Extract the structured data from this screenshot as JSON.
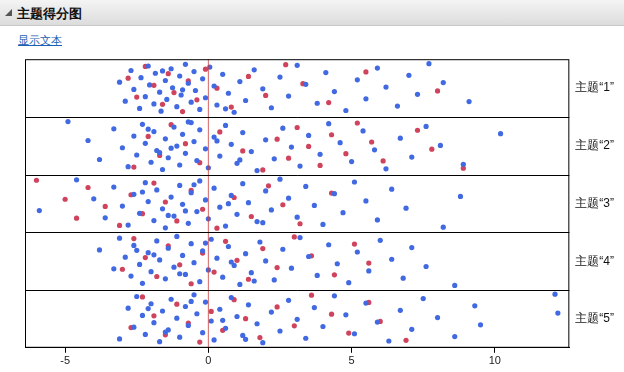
{
  "title": "主题得分图",
  "link_text": "显示文本",
  "chart_data": {
    "type": "scatter",
    "xlim": [
      -6.4,
      12.6
    ],
    "xticks": [
      -5,
      0,
      5,
      10
    ],
    "grid": false,
    "reference_x": 0,
    "panels": [
      {
        "label": "主题“1”",
        "series": [
          {
            "color": "#4169e1",
            "values": [
              -3.1,
              -2.9,
              -2.7,
              -2.6,
              -2.4,
              -2.35,
              -2.2,
              -2.1,
              -2.05,
              -1.9,
              -1.85,
              -1.7,
              -1.65,
              -1.5,
              -1.45,
              -1.3,
              -1.25,
              -1.1,
              -1.0,
              -0.95,
              -0.8,
              -0.7,
              -0.6,
              -0.5,
              -0.45,
              -0.3,
              -0.2,
              -0.1,
              0.05,
              0.2,
              0.3,
              0.5,
              0.7,
              0.9,
              1.1,
              1.3,
              1.6,
              1.9,
              2.2,
              2.5,
              2.8,
              3.1,
              3.4,
              3.8,
              4.1,
              4.4,
              4.8,
              5.2,
              5.5,
              5.9,
              6.2,
              6.6,
              7.0,
              7.3,
              7.7,
              8.2,
              9.1,
              -1.6,
              -0.9,
              0.6
            ]
          },
          {
            "color": "#d0435c",
            "values": [
              -2.8,
              -2.5,
              -2.2,
              -1.9,
              -1.6,
              -1.4,
              -1.2,
              -0.9,
              -0.7,
              -0.4,
              -0.1,
              0.3,
              0.8,
              1.4,
              2.0,
              2.7,
              3.3,
              4.2,
              5.5,
              8.0
            ]
          }
        ]
      },
      {
        "label": "主题“2”",
        "series": [
          {
            "color": "#4169e1",
            "values": [
              -4.9,
              -4.2,
              -3.8,
              -3.3,
              -3.0,
              -2.8,
              -2.6,
              -2.5,
              -2.3,
              -2.2,
              -2.0,
              -1.9,
              -1.8,
              -1.6,
              -1.5,
              -1.4,
              -1.2,
              -1.1,
              -1.0,
              -0.9,
              -0.8,
              -0.6,
              -0.5,
              -0.4,
              -0.3,
              -0.1,
              0.0,
              0.2,
              0.4,
              0.6,
              0.8,
              1.0,
              1.2,
              1.5,
              1.7,
              2.0,
              2.3,
              2.6,
              2.9,
              3.2,
              3.5,
              3.9,
              4.2,
              4.6,
              5.0,
              5.4,
              5.8,
              6.2,
              6.7,
              7.1,
              7.6,
              8.1,
              8.9,
              10.2,
              -1.7,
              -0.7,
              0.3,
              1.1,
              -2.1,
              -1.3
            ]
          },
          {
            "color": "#d0435c",
            "values": [
              -2.6,
              -2.1,
              -1.7,
              -1.3,
              -0.8,
              -0.3,
              0.4,
              1.2,
              1.9,
              2.4,
              2.8,
              3.1,
              3.5,
              3.9,
              4.3,
              4.8,
              5.2,
              5.7,
              6.1,
              7.3,
              7.8,
              8.9
            ]
          }
        ]
      },
      {
        "label": "主题“3”",
        "series": [
          {
            "color": "#4169e1",
            "values": [
              -5.9,
              -4.6,
              -4.0,
              -3.6,
              -3.3,
              -3.0,
              -2.8,
              -2.6,
              -2.4,
              -2.2,
              -2.1,
              -1.9,
              -1.8,
              -1.6,
              -1.5,
              -1.3,
              -1.2,
              -1.0,
              -0.9,
              -0.7,
              -0.6,
              -0.4,
              -0.3,
              -0.1,
              0.0,
              0.2,
              0.4,
              0.6,
              0.8,
              1.0,
              1.2,
              1.4,
              1.7,
              2.0,
              2.2,
              2.5,
              2.8,
              3.1,
              3.4,
              3.7,
              4.0,
              4.4,
              4.7,
              5.1,
              5.5,
              5.9,
              6.4,
              6.9,
              8.2,
              8.8,
              -1.4,
              -0.5,
              0.7,
              1.9,
              -2.3,
              -0.8
            ]
          },
          {
            "color": "#d0435c",
            "values": [
              -6.0,
              -5.0,
              -4.6,
              -4.2,
              -3.6,
              -3.1,
              -2.7,
              -2.3,
              -1.9,
              -1.5,
              -1.1,
              -0.6,
              -0.2,
              0.3,
              0.9,
              1.5,
              2.1,
              2.6,
              3.2,
              4.3
            ]
          }
        ]
      },
      {
        "label": "主题“4”",
        "series": [
          {
            "color": "#4169e1",
            "values": [
              -3.8,
              -3.3,
              -3.1,
              -2.9,
              -2.7,
              -2.6,
              -2.4,
              -2.3,
              -2.1,
              -2.0,
              -1.8,
              -1.7,
              -1.5,
              -1.4,
              -1.2,
              -1.1,
              -0.9,
              -0.8,
              -0.6,
              -0.5,
              -0.3,
              -0.2,
              0.0,
              0.1,
              0.3,
              0.5,
              0.7,
              0.9,
              1.1,
              1.3,
              1.5,
              1.8,
              2.0,
              2.3,
              2.6,
              2.9,
              3.2,
              3.5,
              3.8,
              4.2,
              4.5,
              4.9,
              5.2,
              5.6,
              6.0,
              6.4,
              6.8,
              7.1,
              7.6,
              8.6,
              -1.9,
              -1.0,
              -0.1,
              0.8,
              1.6,
              -2.5
            ]
          },
          {
            "color": "#d0435c",
            "values": [
              -3.0,
              -2.6,
              -2.2,
              -1.8,
              -1.4,
              -1.0,
              -0.6,
              -0.2,
              0.2,
              0.6,
              1.0,
              1.4,
              1.9,
              2.4,
              3.0,
              3.6,
              4.4,
              5.1,
              5.6
            ]
          }
        ]
      },
      {
        "label": "主题“5”",
        "series": [
          {
            "color": "#4169e1",
            "values": [
              -3.1,
              -2.8,
              -2.6,
              -2.5,
              -2.3,
              -2.2,
              -2.0,
              -1.9,
              -1.7,
              -1.6,
              -1.4,
              -1.3,
              -1.1,
              -1.0,
              -0.8,
              -0.7,
              -0.5,
              -0.4,
              -0.2,
              -0.1,
              0.1,
              0.2,
              0.4,
              0.6,
              0.8,
              1.0,
              1.2,
              1.4,
              1.7,
              1.9,
              2.2,
              2.5,
              2.8,
              3.1,
              3.4,
              3.7,
              4.0,
              4.4,
              4.8,
              5.1,
              5.5,
              5.9,
              6.3,
              6.7,
              7.1,
              7.5,
              8.0,
              8.6,
              9.3,
              9.5,
              12.1,
              12.2,
              -1.5,
              -0.6,
              0.5,
              1.3,
              -2.1
            ]
          },
          {
            "color": "#d0435c",
            "values": [
              -2.7,
              -2.3,
              -1.9,
              -1.5,
              -1.1,
              -0.7,
              -0.3,
              0.1,
              0.5,
              0.9,
              1.3,
              1.8,
              2.4,
              3.0,
              3.6,
              4.3,
              4.9,
              5.6,
              6.0,
              6.9
            ]
          }
        ]
      }
    ]
  }
}
